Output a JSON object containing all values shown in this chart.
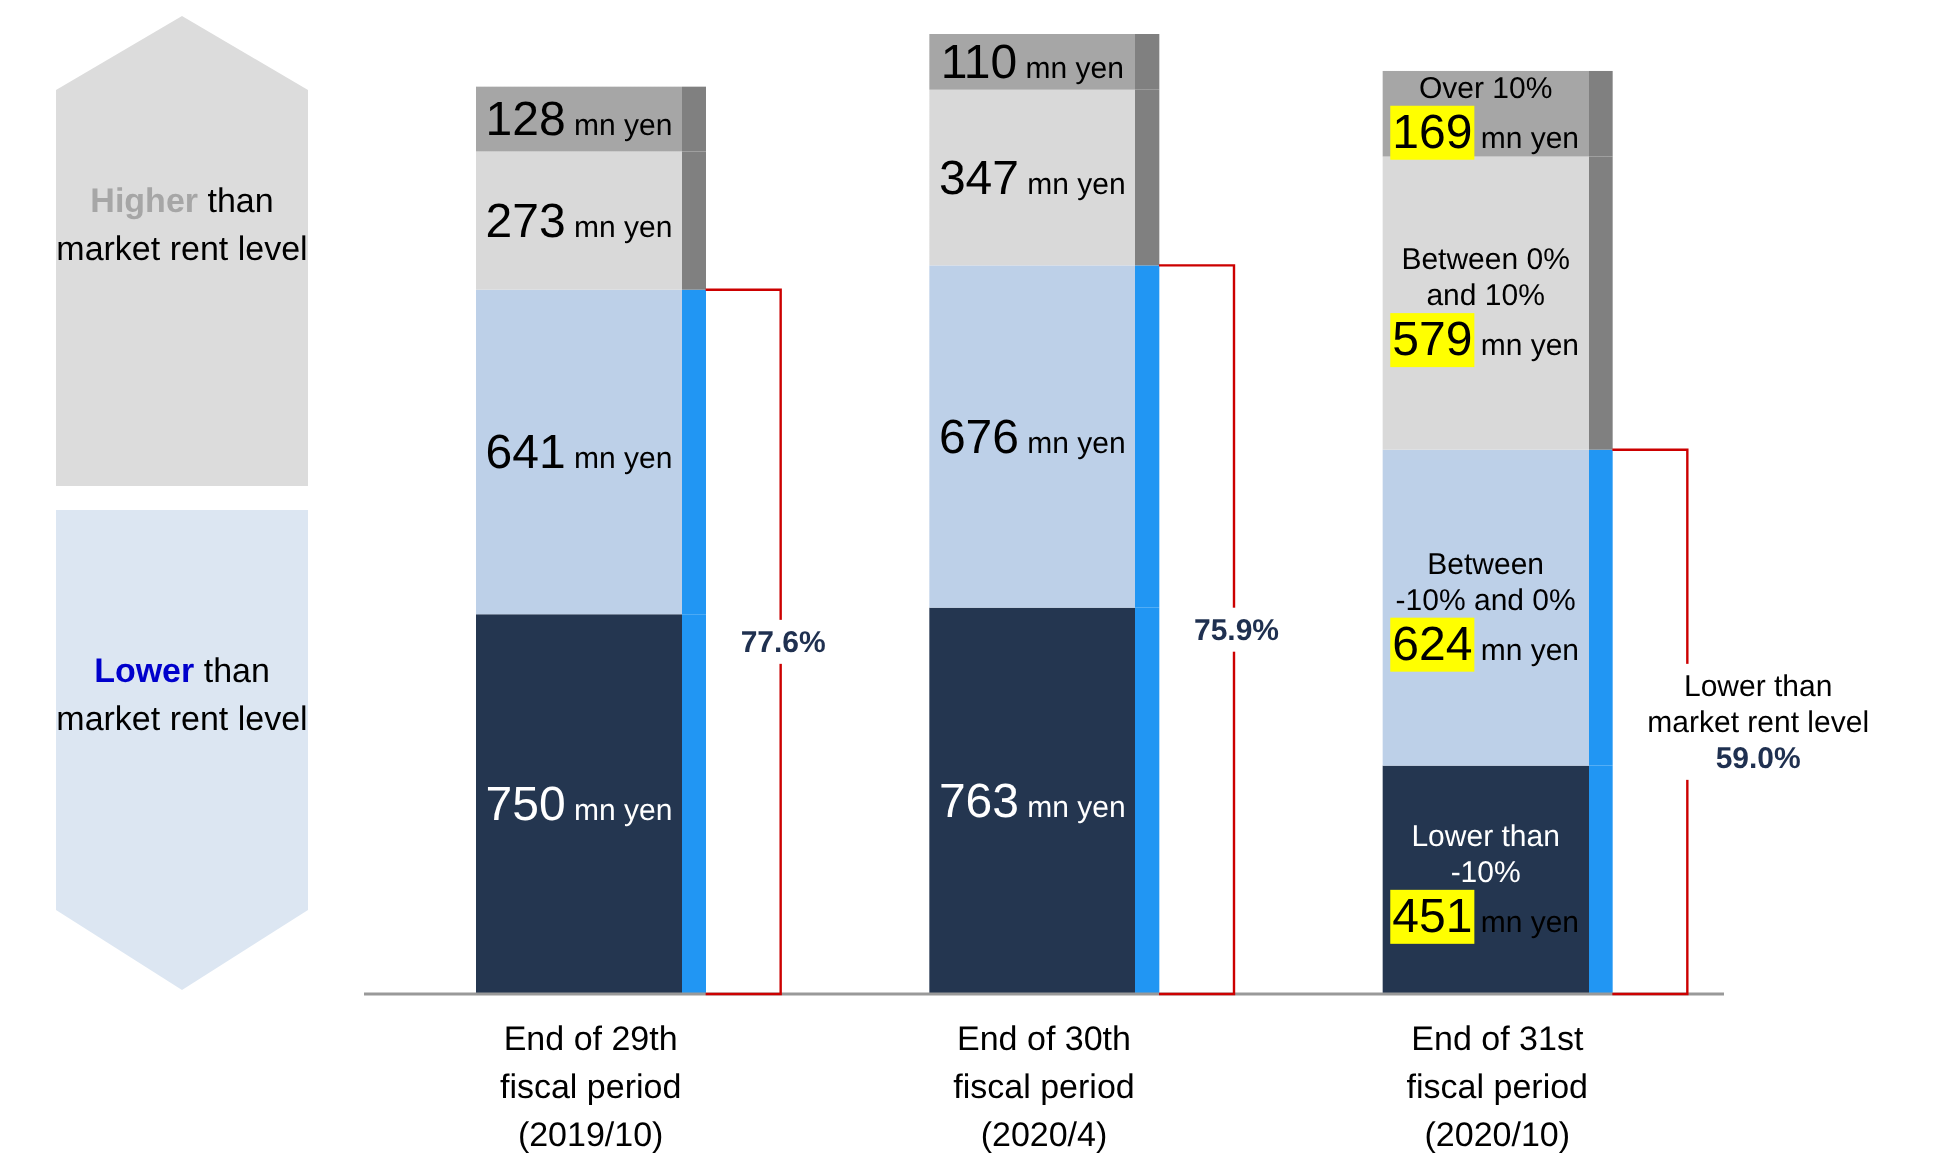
{
  "chart_data": {
    "type": "bar",
    "stacked": true,
    "categories": [
      "End of 29th fiscal period (2019/10)",
      "End of 30th fiscal period (2020/4)",
      "End of 31st fiscal period (2020/10)"
    ],
    "series": [
      {
        "name": "Lower than -10%",
        "color": "#243650",
        "values": [
          750,
          763,
          451
        ],
        "value_labels": [
          "750 mn yen",
          "763 mn yen",
          "451 mn yen"
        ]
      },
      {
        "name": "Between -10% and 0%",
        "color": "#bdd0e8",
        "values": [
          641,
          676,
          624
        ],
        "value_labels": [
          "641 mn yen",
          "676 mn yen",
          "624 mn yen"
        ]
      },
      {
        "name": "Between 0% and 10%",
        "color": "#d9d9d9",
        "values": [
          273,
          347,
          579
        ],
        "value_labels": [
          "273 mn yen",
          "347 mn yen",
          "579 mn yen"
        ]
      },
      {
        "name": "Over 10%",
        "color": "#a6a6a6",
        "values": [
          128,
          110,
          169
        ],
        "value_labels": [
          "128 mn yen",
          "110 mn yen",
          "169 mn yen"
        ]
      }
    ],
    "annotations": [
      "77.6%",
      "75.9%",
      "Lower than market rent level 59.0%",
      "Higher than market rent level",
      "Lower than market rent level"
    ]
  }
}
